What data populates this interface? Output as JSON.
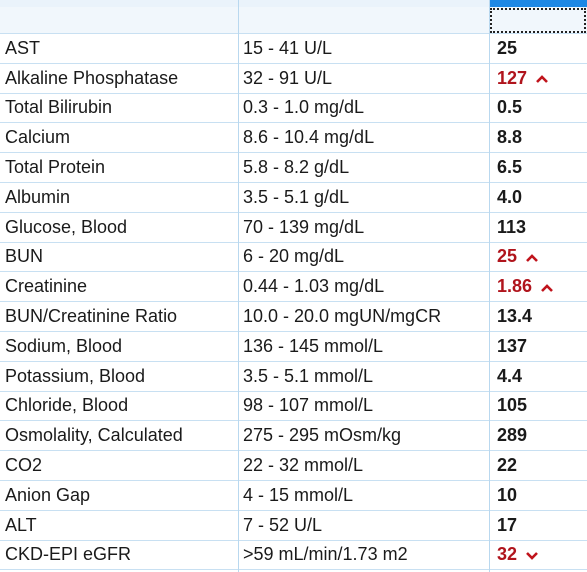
{
  "table": {
    "rows": [
      {
        "test": "AST",
        "range": "15 - 41 U/L",
        "result": "25"
      },
      {
        "test": "Alkaline Phosphatase",
        "range": "32 - 91 U/L",
        "result": "127",
        "flag": "high"
      },
      {
        "test": "Total Bilirubin",
        "range": "0.3 - 1.0 mg/dL",
        "result": "0.5"
      },
      {
        "test": "Calcium",
        "range": "8.6 - 10.4 mg/dL",
        "result": "8.8"
      },
      {
        "test": "Total Protein",
        "range": "5.8 - 8.2 g/dL",
        "result": "6.5"
      },
      {
        "test": "Albumin",
        "range": "3.5 - 5.1 g/dL",
        "result": "4.0"
      },
      {
        "test": "Glucose, Blood",
        "range": "70 - 139 mg/dL",
        "result": "113"
      },
      {
        "test": "BUN",
        "range": "6 - 20 mg/dL",
        "result": "25",
        "flag": "high"
      },
      {
        "test": "Creatinine",
        "range": "0.44 - 1.03 mg/dL",
        "result": "1.86",
        "flag": "high"
      },
      {
        "test": "BUN/Creatinine Ratio",
        "range": "10.0 - 20.0 mgUN/mgCR",
        "result": "13.4"
      },
      {
        "test": "Sodium, Blood",
        "range": "136 - 145 mmol/L",
        "result": "137"
      },
      {
        "test": "Potassium, Blood",
        "range": "3.5 - 5.1 mmol/L",
        "result": "4.4"
      },
      {
        "test": "Chloride, Blood",
        "range": "98 - 107 mmol/L",
        "result": "105"
      },
      {
        "test": "Osmolality, Calculated",
        "range": "275 - 295 mOsm/kg",
        "result": "289"
      },
      {
        "test": "CO2",
        "range": "22 - 32 mmol/L",
        "result": "22"
      },
      {
        "test": "Anion Gap",
        "range": "4 - 15 mmol/L",
        "result": "10"
      },
      {
        "test": "ALT",
        "range": "7 - 52 U/L",
        "result": "17"
      },
      {
        "test": "CKD-EPI eGFR",
        "range": ">59 mL/min/1.73 m2",
        "result": "32",
        "flag": "low"
      }
    ]
  }
}
